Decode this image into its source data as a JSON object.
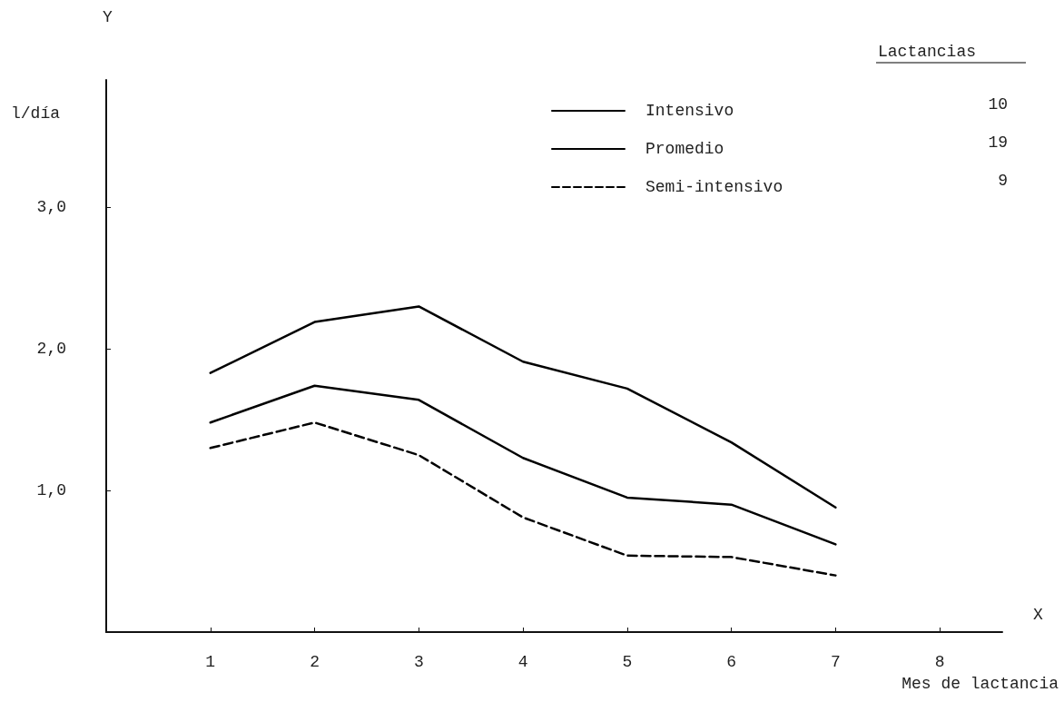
{
  "chart_data": {
    "type": "line",
    "xlabel": "Mes de lactancia",
    "ylabel": "l/día",
    "legend_title": "Lactancias",
    "legend": "top right",
    "grid": false,
    "marker": "none",
    "x": [
      1,
      2,
      3,
      4,
      5,
      6,
      7
    ],
    "series": [
      {
        "name": "Intensivo",
        "color": "#000000",
        "line_style": "solid",
        "values": [
          1.83,
          2.19,
          2.3,
          1.91,
          1.72,
          1.34,
          0.88
        ]
      },
      {
        "name": "Promedio",
        "color": "#000000",
        "line_style": "solid",
        "values": [
          1.48,
          1.74,
          1.64,
          1.23,
          0.95,
          0.9,
          0.62
        ]
      },
      {
        "name": "Semi-intensivo",
        "color": "#000000",
        "line_style": "dashed",
        "values": [
          1.3,
          1.48,
          1.25,
          0.81,
          0.54,
          0.53,
          0.4
        ]
      }
    ],
    "xlim": [
      0,
      8.6
    ],
    "xticks": [
      1,
      2,
      3,
      4,
      5,
      6,
      7,
      8
    ],
    "ylim": [
      0,
      3.9
    ],
    "yticks": [
      {
        "value": 1,
        "label": "1,0"
      },
      {
        "value": 2,
        "label": "2,0"
      },
      {
        "value": 3,
        "label": "3,0"
      }
    ],
    "annotations": [
      "Y",
      "X",
      "10",
      "19",
      "9"
    ]
  }
}
